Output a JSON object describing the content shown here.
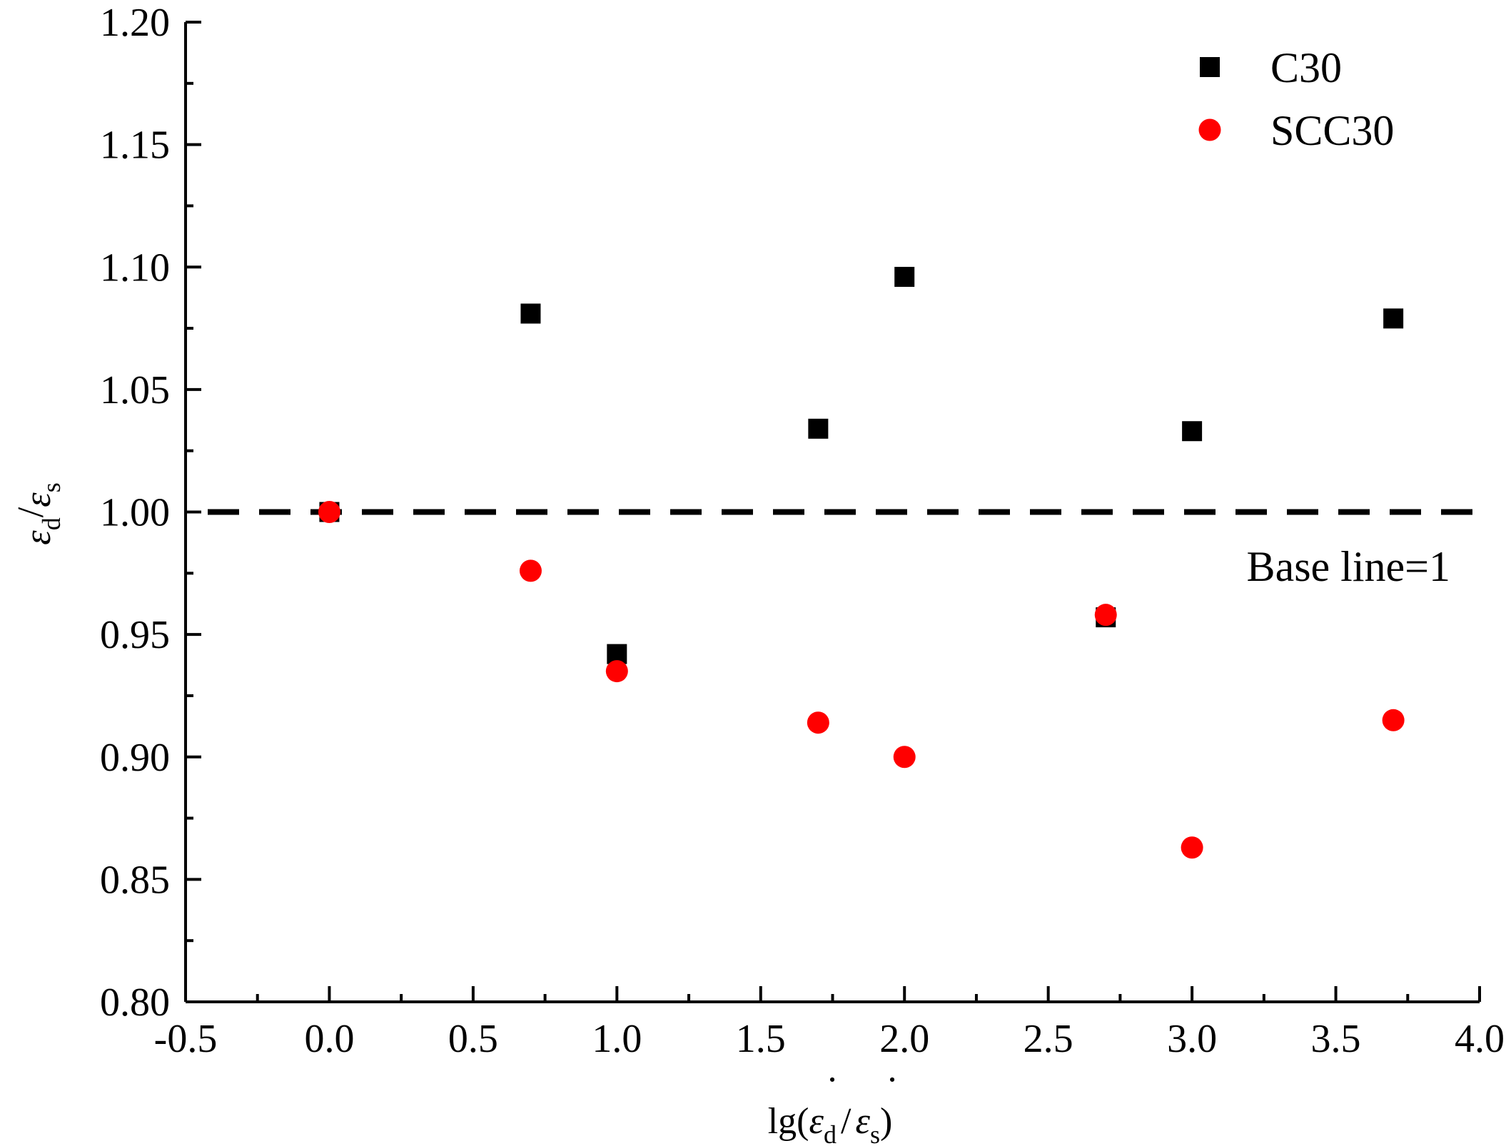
{
  "chart_data": {
    "type": "scatter",
    "title": "",
    "xlabel": {
      "prefix": "lg(",
      "num_symbol": "ε",
      "num_sub": "d",
      "separator": "/",
      "den_symbol": "ε",
      "den_sub": "s",
      "suffix": ")",
      "dot": "·"
    },
    "ylabel": {
      "num_symbol": "ε",
      "num_sub": "d",
      "separator": "/",
      "den_symbol": "ε",
      "den_sub": "s"
    },
    "xlim": [
      -0.5,
      4.0
    ],
    "ylim": [
      0.8,
      1.2
    ],
    "xticks": [
      "-0.5",
      "0.0",
      "0.5",
      "1.0",
      "1.5",
      "2.0",
      "2.5",
      "3.0",
      "3.5",
      "4.0"
    ],
    "yticks": [
      "0.80",
      "0.85",
      "0.90",
      "0.95",
      "1.00",
      "1.05",
      "1.10",
      "1.15",
      "1.20"
    ],
    "grid": false,
    "legend_position": "top-right",
    "baseline": {
      "y": 1.0,
      "label": "Base line=1",
      "style": "dashed"
    },
    "series": [
      {
        "name": "C30",
        "marker": "square",
        "color": "#000000",
        "x": [
          0.0,
          0.7,
          1.0,
          1.7,
          2.0,
          2.7,
          3.0,
          3.7
        ],
        "y": [
          1.0,
          1.081,
          0.942,
          1.034,
          1.096,
          0.957,
          1.033,
          1.079
        ]
      },
      {
        "name": "SCC30",
        "marker": "circle",
        "color": "#ff0000",
        "x": [
          0.0,
          0.7,
          1.0,
          1.7,
          2.0,
          2.7,
          3.0,
          3.7
        ],
        "y": [
          1.0,
          0.976,
          0.935,
          0.914,
          0.9,
          0.958,
          0.863,
          0.915
        ]
      }
    ]
  }
}
